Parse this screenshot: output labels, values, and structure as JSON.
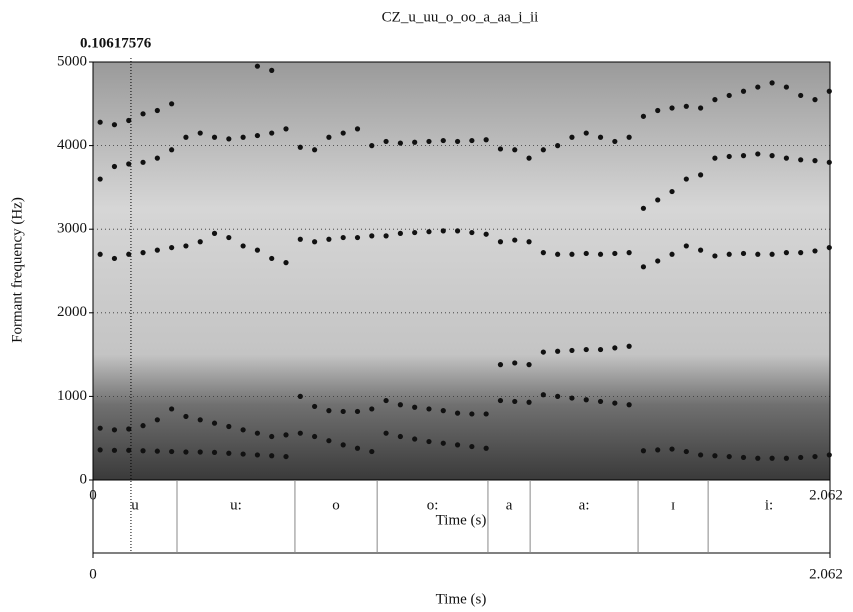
{
  "chart_data": {
    "type": "formant",
    "title": "CZ_u_uu_o_oo_a_aa_i_ii",
    "cursor": 0.10617576,
    "ylabel": "Formant frequency (Hz)",
    "xlabel": "Time (s)",
    "xlim": [
      0,
      2.062
    ],
    "xticks": [
      0,
      2.062
    ],
    "ylim": [
      0,
      5000
    ],
    "yticks": [
      0,
      1000,
      2000,
      3000,
      4000,
      5000
    ],
    "grid": true,
    "x": [
      0.02,
      0.06,
      0.1,
      0.14,
      0.18,
      0.22,
      0.26,
      0.3,
      0.34,
      0.38,
      0.42,
      0.46,
      0.5,
      0.54,
      0.58,
      0.62,
      0.66,
      0.7,
      0.74,
      0.78,
      0.82,
      0.86,
      0.9,
      0.94,
      0.98,
      1.02,
      1.06,
      1.1,
      1.14,
      1.18,
      1.22,
      1.26,
      1.3,
      1.34,
      1.38,
      1.42,
      1.46,
      1.5,
      1.54,
      1.58,
      1.62,
      1.66,
      1.7,
      1.74,
      1.78,
      1.82,
      1.86,
      1.9,
      1.94,
      1.98,
      2.02,
      2.06
    ],
    "series": [
      {
        "color": "#111111",
        "values": [
          360,
          355,
          355,
          350,
          345,
          340,
          335,
          335,
          330,
          320,
          310,
          300,
          290,
          280,
          560,
          520,
          470,
          420,
          380,
          340,
          560,
          520,
          490,
          460,
          440,
          420,
          400,
          380,
          950,
          940,
          930,
          1020,
          1000,
          980,
          960,
          940,
          920,
          900,
          350,
          360,
          370,
          340,
          300,
          290,
          280,
          270,
          260,
          260,
          260,
          270,
          280,
          300
        ]
      },
      {
        "color": "#111111",
        "values": [
          620,
          600,
          610,
          650,
          720,
          850,
          760,
          720,
          680,
          640,
          600,
          560,
          520,
          540,
          1000,
          880,
          830,
          820,
          820,
          850,
          950,
          900,
          870,
          850,
          830,
          800,
          790,
          790,
          1380,
          1400,
          1380,
          1530,
          1540,
          1550,
          1560,
          1560,
          1580,
          1600,
          2550,
          2620,
          2700,
          2800,
          2750,
          2680,
          2700,
          2710,
          2700,
          2700,
          2720,
          2720,
          2740,
          2780
        ]
      },
      {
        "color": "#111111",
        "values": [
          2700,
          2650,
          2700,
          2720,
          2750,
          2780,
          2800,
          2850,
          2950,
          2900,
          2800,
          2750,
          2650,
          2600,
          2880,
          2850,
          2880,
          2900,
          2900,
          2920,
          2920,
          2950,
          2960,
          2970,
          2980,
          2980,
          2960,
          2940,
          2850,
          2870,
          2850,
          2720,
          2700,
          2700,
          2710,
          2700,
          2710,
          2720,
          3250,
          3350,
          3450,
          3600,
          3650,
          3850,
          3870,
          3880,
          3900,
          3880,
          3850,
          3830,
          3820,
          3800
        ]
      },
      {
        "color": "#111111",
        "values": [
          3600,
          3750,
          3780,
          3800,
          3850,
          3950,
          4100,
          4150,
          4100,
          4080,
          4100,
          4120,
          4150,
          4200,
          3980,
          3950,
          4100,
          4150,
          4200,
          4000,
          4050,
          4030,
          4040,
          4050,
          4060,
          4050,
          4060,
          4070,
          3960,
          3950,
          3850,
          3950,
          4000,
          4100,
          4150,
          4100,
          4050,
          4100,
          4350,
          4420,
          4450,
          4470,
          4450,
          4550,
          4600,
          4650,
          4700,
          4750,
          4700,
          4600,
          4550,
          4650
        ]
      },
      {
        "color": "#111111",
        "values": [
          4280,
          4250,
          4300,
          4380,
          4420,
          4500,
          null,
          null,
          null,
          null,
          null,
          4950,
          4900,
          null,
          null,
          null,
          null,
          null,
          null,
          null,
          null,
          null,
          null,
          null,
          null,
          null,
          null,
          null,
          null,
          null,
          null,
          null,
          null,
          null,
          null,
          null,
          null,
          null,
          null,
          null,
          null,
          null,
          null,
          null,
          null,
          null,
          null,
          null,
          null,
          null,
          null,
          null
        ]
      }
    ],
    "tier": {
      "boundaries": [
        0.235,
        0.565,
        0.795,
        1.105,
        1.223,
        1.525,
        1.721
      ],
      "labels": [
        "u",
        "u:",
        "o",
        "o:",
        "a",
        "a:",
        "ɪ",
        "i:"
      ],
      "xticks": [
        0,
        2.062
      ],
      "xlabel": "Time (s)"
    }
  }
}
